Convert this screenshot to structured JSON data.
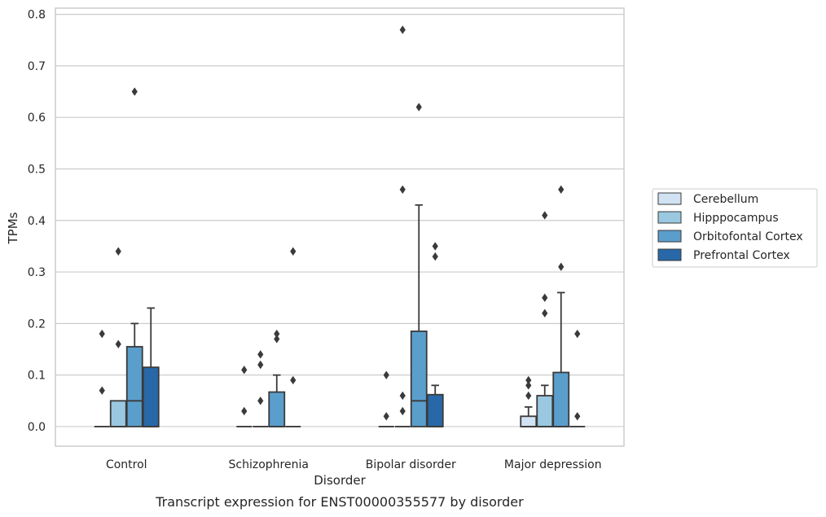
{
  "chart_data": {
    "type": "box",
    "caption": "Transcript expression for ENST00000355577 by disorder",
    "xlabel": "Disorder",
    "ylabel": "TPMs",
    "ylim": [
      -0.038,
      0.812
    ],
    "yticks": [
      0.0,
      0.1,
      0.2,
      0.3,
      0.4,
      0.5,
      0.6,
      0.7,
      0.8
    ],
    "ytick_labels": [
      "0.0",
      "0.1",
      "0.2",
      "0.3",
      "0.4",
      "0.5",
      "0.6",
      "0.7",
      "0.8"
    ],
    "grid": "horizontal",
    "legend_position": "right",
    "categories": [
      "Control",
      "Schizophrenia",
      "Bipolar disorder",
      "Major depression"
    ],
    "series": [
      {
        "name": "Cerebellum",
        "color": "#d1e3f3",
        "boxes": [
          {
            "q1": 0.0,
            "median": 0.0,
            "q3": 0.0,
            "whisker_low": 0.0,
            "whisker_high": 0.0,
            "outliers": [
              0.18,
              0.07
            ]
          },
          {
            "q1": 0.0,
            "median": 0.0,
            "q3": 0.0,
            "whisker_low": 0.0,
            "whisker_high": 0.0,
            "outliers": [
              0.11,
              0.03
            ]
          },
          {
            "q1": 0.0,
            "median": 0.0,
            "q3": 0.0,
            "whisker_low": 0.0,
            "whisker_high": 0.0,
            "outliers": [
              0.1,
              0.02
            ]
          },
          {
            "q1": 0.0,
            "median": 0.0,
            "q3": 0.02,
            "whisker_low": 0.0,
            "whisker_high": 0.038,
            "outliers": [
              0.09,
              0.08,
              0.06
            ]
          }
        ]
      },
      {
        "name": "Hipppocampus",
        "color": "#9ac8e0",
        "boxes": [
          {
            "q1": 0.0,
            "median": 0.0,
            "q3": 0.05,
            "whisker_low": 0.0,
            "whisker_high": 0.05,
            "outliers": [
              0.34,
              0.16
            ]
          },
          {
            "q1": 0.0,
            "median": 0.0,
            "q3": 0.0,
            "whisker_low": 0.0,
            "whisker_high": 0.0,
            "outliers": [
              0.14,
              0.12,
              0.05
            ]
          },
          {
            "q1": 0.0,
            "median": 0.0,
            "q3": 0.0,
            "whisker_low": 0.0,
            "whisker_high": 0.0,
            "outliers": [
              0.77,
              0.46,
              0.06,
              0.03
            ]
          },
          {
            "q1": 0.0,
            "median": 0.0,
            "q3": 0.06,
            "whisker_low": 0.0,
            "whisker_high": 0.08,
            "outliers": [
              0.41,
              0.25,
              0.22
            ]
          }
        ]
      },
      {
        "name": "Orbitofontal Cortex",
        "color": "#5a9ecc",
        "boxes": [
          {
            "q1": 0.0,
            "median": 0.05,
            "q3": 0.155,
            "whisker_low": 0.0,
            "whisker_high": 0.2,
            "outliers": [
              0.65
            ]
          },
          {
            "q1": 0.0,
            "median": 0.0,
            "q3": 0.067,
            "whisker_low": 0.0,
            "whisker_high": 0.1,
            "outliers": [
              0.18,
              0.17
            ]
          },
          {
            "q1": 0.0,
            "median": 0.05,
            "q3": 0.185,
            "whisker_low": 0.0,
            "whisker_high": 0.43,
            "outliers": [
              0.62
            ]
          },
          {
            "q1": 0.0,
            "median": 0.0,
            "q3": 0.105,
            "whisker_low": 0.0,
            "whisker_high": 0.26,
            "outliers": [
              0.46,
              0.31
            ]
          }
        ]
      },
      {
        "name": "Prefrontal Cortex",
        "color": "#2868a8",
        "boxes": [
          {
            "q1": 0.0,
            "median": 0.0,
            "q3": 0.115,
            "whisker_low": 0.0,
            "whisker_high": 0.23,
            "outliers": []
          },
          {
            "q1": 0.0,
            "median": 0.0,
            "q3": 0.0,
            "whisker_low": 0.0,
            "whisker_high": 0.0,
            "outliers": [
              0.34,
              0.09
            ]
          },
          {
            "q1": 0.0,
            "median": 0.0,
            "q3": 0.062,
            "whisker_low": 0.0,
            "whisker_high": 0.08,
            "outliers": [
              0.35,
              0.33
            ]
          },
          {
            "q1": 0.0,
            "median": 0.0,
            "q3": 0.0,
            "whisker_low": 0.0,
            "whisker_high": 0.0,
            "outliers": [
              0.18,
              0.02
            ]
          }
        ]
      }
    ]
  }
}
